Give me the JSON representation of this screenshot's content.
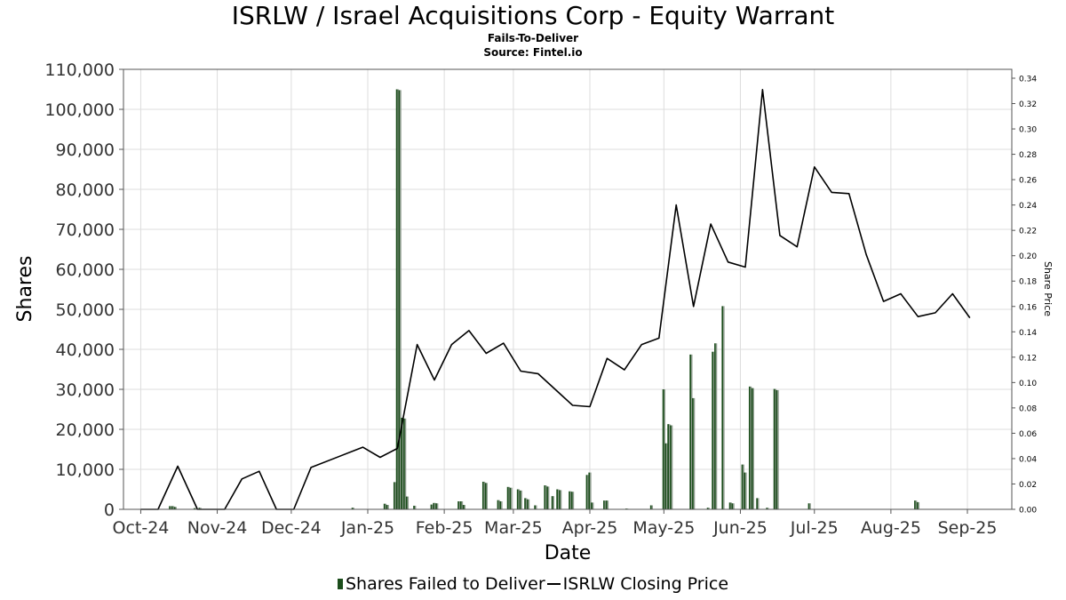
{
  "title": "ISRLW / Israel Acquisitions Corp - Equity Warrant",
  "subtitle": "Fails-To-Deliver",
  "source": "Source: Fintel.io",
  "colors": {
    "ftd_bar": "#1b4d1b",
    "ftd_bar_shade": "#8c9a8c",
    "price_line": "#000000",
    "grid": "#dddddd"
  },
  "chart_data": {
    "type": "bar",
    "xlabel": "Date",
    "ylabel": "Shares",
    "y2label": "Share Price",
    "ylim": [
      0,
      110000
    ],
    "y2lim": [
      0,
      0.347
    ],
    "xlim": [
      "2024-09-24",
      "2025-09-19"
    ],
    "grid": true,
    "legend_position": "bottom",
    "y_ticks": [
      "0",
      "10,000",
      "20,000",
      "30,000",
      "40,000",
      "50,000",
      "60,000",
      "70,000",
      "80,000",
      "90,000",
      "100,000",
      "110,000"
    ],
    "y_tick_values": [
      0,
      10000,
      20000,
      30000,
      40000,
      50000,
      60000,
      70000,
      80000,
      90000,
      100000,
      110000
    ],
    "y2_ticks": [
      "0.00",
      "0.02",
      "0.04",
      "0.06",
      "0.08",
      "0.10",
      "0.12",
      "0.14",
      "0.16",
      "0.18",
      "0.20",
      "0.22",
      "0.24",
      "0.26",
      "0.28",
      "0.30",
      "0.32",
      "0.34"
    ],
    "y2_tick_values": [
      0,
      0.02,
      0.04,
      0.06,
      0.08,
      0.1,
      0.12,
      0.14,
      0.16,
      0.18,
      0.2,
      0.22,
      0.24,
      0.26,
      0.28,
      0.3,
      0.32,
      0.34
    ],
    "x_ticks": [
      "Oct-24",
      "Nov-24",
      "Dec-24",
      "Jan-25",
      "Feb-25",
      "Mar-25",
      "Apr-25",
      "May-25",
      "Jun-25",
      "Jul-25",
      "Aug-25",
      "Sep-25"
    ],
    "x_tick_dates": [
      "2024-10-01",
      "2024-11-01",
      "2024-12-01",
      "2025-01-01",
      "2025-02-01",
      "2025-03-01",
      "2025-04-01",
      "2025-05-01",
      "2025-06-01",
      "2025-07-01",
      "2025-08-01",
      "2025-09-01"
    ],
    "series": [
      {
        "name": "Shares Failed to Deliver",
        "type": "bar",
        "axis": "left",
        "points": [
          {
            "x": "2024-10-13",
            "y": 800
          },
          {
            "x": "2024-10-14",
            "y": 800
          },
          {
            "x": "2024-10-15",
            "y": 600
          },
          {
            "x": "2024-10-23",
            "y": 300
          },
          {
            "x": "2024-10-25",
            "y": 400
          },
          {
            "x": "2024-12-26",
            "y": 400
          },
          {
            "x": "2025-01-08",
            "y": 1400
          },
          {
            "x": "2025-01-09",
            "y": 1100
          },
          {
            "x": "2025-01-12",
            "y": 6800
          },
          {
            "x": "2025-01-13",
            "y": 105000
          },
          {
            "x": "2025-01-14",
            "y": 104800
          },
          {
            "x": "2025-01-15",
            "y": 22900
          },
          {
            "x": "2025-01-16",
            "y": 22700
          },
          {
            "x": "2025-01-17",
            "y": 3200
          },
          {
            "x": "2025-01-20",
            "y": 900
          },
          {
            "x": "2025-01-27",
            "y": 1200
          },
          {
            "x": "2025-01-28",
            "y": 1600
          },
          {
            "x": "2025-01-29",
            "y": 1500
          },
          {
            "x": "2025-02-07",
            "y": 2000
          },
          {
            "x": "2025-02-08",
            "y": 2000
          },
          {
            "x": "2025-02-09",
            "y": 1100
          },
          {
            "x": "2025-02-17",
            "y": 6900
          },
          {
            "x": "2025-02-18",
            "y": 6600
          },
          {
            "x": "2025-02-23",
            "y": 2300
          },
          {
            "x": "2025-02-24",
            "y": 2000
          },
          {
            "x": "2025-02-27",
            "y": 5600
          },
          {
            "x": "2025-02-28",
            "y": 5400
          },
          {
            "x": "2025-03-03",
            "y": 5000
          },
          {
            "x": "2025-03-04",
            "y": 4700
          },
          {
            "x": "2025-03-06",
            "y": 2800
          },
          {
            "x": "2025-03-07",
            "y": 2500
          },
          {
            "x": "2025-03-10",
            "y": 1000
          },
          {
            "x": "2025-03-14",
            "y": 6000
          },
          {
            "x": "2025-03-15",
            "y": 5700
          },
          {
            "x": "2025-03-17",
            "y": 3300
          },
          {
            "x": "2025-03-19",
            "y": 5000
          },
          {
            "x": "2025-03-20",
            "y": 4800
          },
          {
            "x": "2025-03-24",
            "y": 4500
          },
          {
            "x": "2025-03-25",
            "y": 4400
          },
          {
            "x": "2025-03-31",
            "y": 8600
          },
          {
            "x": "2025-04-01",
            "y": 9200
          },
          {
            "x": "2025-04-02",
            "y": 1700
          },
          {
            "x": "2025-04-07",
            "y": 2200
          },
          {
            "x": "2025-04-08",
            "y": 2200
          },
          {
            "x": "2025-04-16",
            "y": 200
          },
          {
            "x": "2025-04-26",
            "y": 1000
          },
          {
            "x": "2025-05-01",
            "y": 30000
          },
          {
            "x": "2025-05-02",
            "y": 16500
          },
          {
            "x": "2025-05-03",
            "y": 21300
          },
          {
            "x": "2025-05-04",
            "y": 21000
          },
          {
            "x": "2025-05-12",
            "y": 38700
          },
          {
            "x": "2025-05-13",
            "y": 27800
          },
          {
            "x": "2025-05-19",
            "y": 400
          },
          {
            "x": "2025-05-21",
            "y": 39400
          },
          {
            "x": "2025-05-22",
            "y": 41500
          },
          {
            "x": "2025-05-25",
            "y": 50800
          },
          {
            "x": "2025-05-28",
            "y": 1700
          },
          {
            "x": "2025-05-29",
            "y": 1500
          },
          {
            "x": "2025-06-02",
            "y": 11200
          },
          {
            "x": "2025-06-03",
            "y": 9200
          },
          {
            "x": "2025-06-05",
            "y": 30700
          },
          {
            "x": "2025-06-06",
            "y": 30300
          },
          {
            "x": "2025-06-08",
            "y": 2800
          },
          {
            "x": "2025-06-12",
            "y": 400
          },
          {
            "x": "2025-06-15",
            "y": 30100
          },
          {
            "x": "2025-06-16",
            "y": 29800
          },
          {
            "x": "2025-06-29",
            "y": 1500
          },
          {
            "x": "2025-08-11",
            "y": 2200
          },
          {
            "x": "2025-08-12",
            "y": 1800
          }
        ]
      },
      {
        "name": "ISRLW Closing Price",
        "type": "line",
        "axis": "right",
        "points": [
          {
            "x": "2024-10-01",
            "y": 0.0
          },
          {
            "x": "2024-10-08",
            "y": 0.0
          },
          {
            "x": "2024-10-16",
            "y": 0.034
          },
          {
            "x": "2024-10-24",
            "y": 0.0
          },
          {
            "x": "2024-11-01",
            "y": 0.0
          },
          {
            "x": "2024-11-04",
            "y": 0.0
          },
          {
            "x": "2024-11-11",
            "y": 0.024
          },
          {
            "x": "2024-11-18",
            "y": 0.03
          },
          {
            "x": "2024-11-25",
            "y": 0.0
          },
          {
            "x": "2024-12-02",
            "y": 0.0
          },
          {
            "x": "2024-12-09",
            "y": 0.033
          },
          {
            "x": "2024-12-30",
            "y": 0.049
          },
          {
            "x": "2025-01-06",
            "y": 0.041
          },
          {
            "x": "2025-01-13",
            "y": 0.048
          },
          {
            "x": "2025-01-21",
            "y": 0.13
          },
          {
            "x": "2025-01-28",
            "y": 0.102
          },
          {
            "x": "2025-02-04",
            "y": 0.13
          },
          {
            "x": "2025-02-11",
            "y": 0.141
          },
          {
            "x": "2025-02-18",
            "y": 0.123
          },
          {
            "x": "2025-02-25",
            "y": 0.131
          },
          {
            "x": "2025-03-04",
            "y": 0.109
          },
          {
            "x": "2025-03-11",
            "y": 0.107
          },
          {
            "x": "2025-03-25",
            "y": 0.082
          },
          {
            "x": "2025-04-01",
            "y": 0.081
          },
          {
            "x": "2025-04-08",
            "y": 0.119
          },
          {
            "x": "2025-04-15",
            "y": 0.11
          },
          {
            "x": "2025-04-22",
            "y": 0.13
          },
          {
            "x": "2025-04-29",
            "y": 0.135
          },
          {
            "x": "2025-05-06",
            "y": 0.24
          },
          {
            "x": "2025-05-13",
            "y": 0.16
          },
          {
            "x": "2025-05-20",
            "y": 0.225
          },
          {
            "x": "2025-05-27",
            "y": 0.195
          },
          {
            "x": "2025-06-03",
            "y": 0.191
          },
          {
            "x": "2025-06-10",
            "y": 0.331
          },
          {
            "x": "2025-06-17",
            "y": 0.216
          },
          {
            "x": "2025-06-24",
            "y": 0.207
          },
          {
            "x": "2025-07-01",
            "y": 0.27
          },
          {
            "x": "2025-07-08",
            "y": 0.25
          },
          {
            "x": "2025-07-15",
            "y": 0.249
          },
          {
            "x": "2025-07-22",
            "y": 0.201
          },
          {
            "x": "2025-07-29",
            "y": 0.164
          },
          {
            "x": "2025-08-05",
            "y": 0.17
          },
          {
            "x": "2025-08-12",
            "y": 0.152
          },
          {
            "x": "2025-08-19",
            "y": 0.155
          },
          {
            "x": "2025-08-26",
            "y": 0.17
          },
          {
            "x": "2025-09-02",
            "y": 0.151
          }
        ]
      }
    ]
  }
}
